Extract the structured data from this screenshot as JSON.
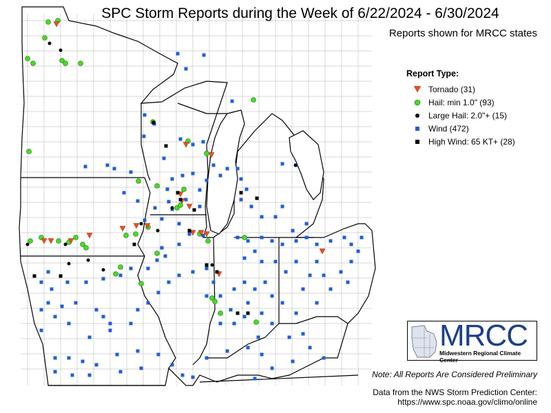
{
  "title": "SPC Storm Reports during the Week of 6/22/2024 - 6/30/2024",
  "subtitle": "Reports shown for MRCC states",
  "legend": {
    "heading": "Report Type:",
    "items": [
      {
        "label": "Tornado (31)",
        "symbol": "tornado-triangle",
        "color": "#e8501e"
      },
      {
        "label": "Hail: min 1.0\" (93)",
        "symbol": "hail-circle",
        "color": "#44dd22"
      },
      {
        "label": "Large Hail: 2.0\"+ (15)",
        "symbol": "large-hail-dot",
        "color": "#000000"
      },
      {
        "label": "Wind (472)",
        "symbol": "wind-square",
        "color": "#1f5fd6"
      },
      {
        "label": "High Wind: 65 KT+ (28)",
        "symbol": "high-wind-square",
        "color": "#000000"
      }
    ]
  },
  "note": "Note: All Reports Are Considered Preliminary",
  "source_line1": "Data from the NWS Storm Prediction Center:",
  "source_line2": "https://www.spc.noaa.gov/climo/online",
  "logo": {
    "text": "MRCC",
    "subtitle": "Midwestern Regional Climate Center"
  },
  "colors": {
    "tornado": "#e8501e",
    "hail": "#44dd22",
    "wind": "#1f5fd6",
    "large_hail": "#000000",
    "high_wind": "#000000"
  }
}
